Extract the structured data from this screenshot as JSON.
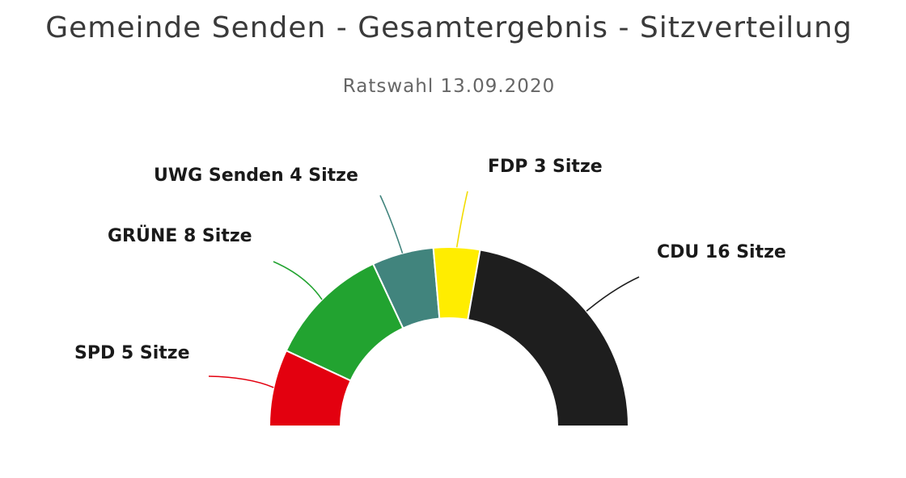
{
  "chart_data": {
    "type": "pie",
    "subtype": "parliament-semicircle",
    "title": "Gemeinde Senden - Gesamtergebnis - Sitzverteilung",
    "subtitle": "Ratswahl 13.09.2020",
    "total_seats": 36,
    "series": [
      {
        "name": "SPD",
        "value": 5,
        "color": "#e3000f",
        "label": "SPD 5 Sitze"
      },
      {
        "name": "GRÜNE",
        "value": 8,
        "color": "#22a330",
        "label": "GRÜNE 8 Sitze"
      },
      {
        "name": "UWG Senden",
        "value": 4,
        "color": "#41847d",
        "label": "UWG Senden 4 Sitze"
      },
      {
        "name": "FDP",
        "value": 3,
        "color": "#ffed00",
        "label": "FDP 3 Sitze"
      },
      {
        "name": "CDU",
        "value": 16,
        "color": "#1e1e1e",
        "label": "CDU 16 Sitze"
      }
    ],
    "legend": "none",
    "data_labels": "outside-with-connectors"
  }
}
